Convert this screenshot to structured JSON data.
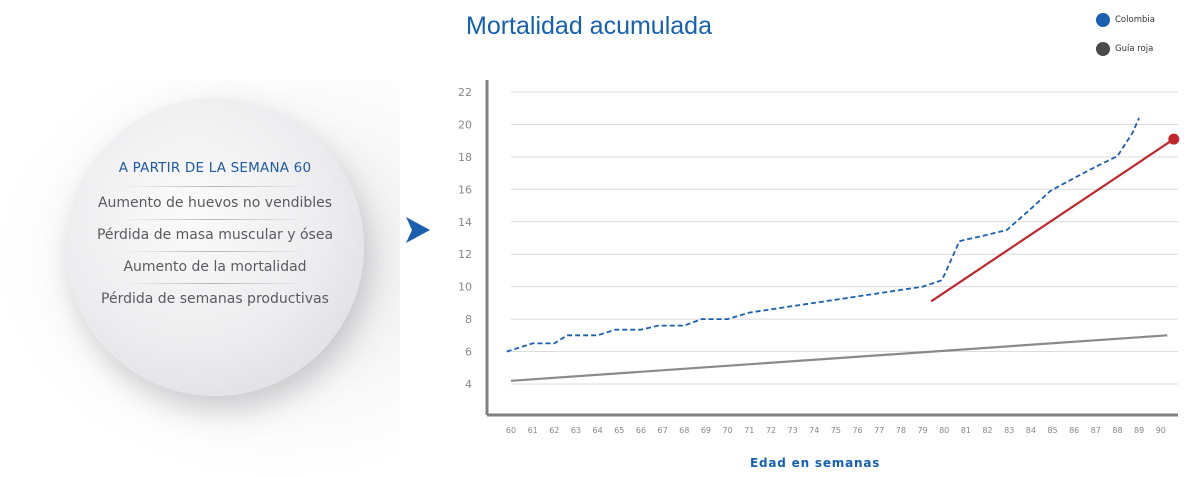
{
  "info_panel": {
    "heading": "A PARTIR DE LA SEMANA 60",
    "items": [
      "Aumento de huevos no vendibles",
      "Pérdida de masa muscular y ósea",
      "Aumento de la mortalidad",
      "Pérdida de semanas productivas"
    ],
    "arrow_icon": "arrow-right-icon"
  },
  "colors": {
    "colombia": "#1a5fb0",
    "guia_roja": "#4a4a4a",
    "trend": "#c1272d",
    "baseline": "#8a8a8a",
    "axis": "#808080"
  },
  "chart_data": {
    "type": "line",
    "title": "Mortalidad acumulada",
    "xlabel": "Edad en semanas",
    "ylabel": "",
    "x": [
      60,
      61,
      62,
      63,
      64,
      65,
      66,
      67,
      68,
      69,
      70,
      71,
      72,
      73,
      74,
      75,
      76,
      77,
      78,
      79,
      80,
      81,
      82,
      83,
      84,
      85,
      86,
      87,
      88,
      89,
      90
    ],
    "xlim": [
      59.2,
      90.6
    ],
    "ylim": [
      2.2,
      23
    ],
    "yticks": [
      4,
      6,
      8,
      10,
      12,
      14,
      16,
      18,
      20,
      22
    ],
    "grid": true,
    "legend_position": "top-right",
    "series": [
      {
        "name": "Colombia",
        "style": "dashed",
        "points": [
          [
            59.8,
            6.0
          ],
          [
            61,
            6.5
          ],
          [
            62,
            6.5
          ],
          [
            62.6,
            7.0
          ],
          [
            64,
            7.0
          ],
          [
            64.8,
            7.35
          ],
          [
            66,
            7.35
          ],
          [
            66.8,
            7.6
          ],
          [
            68,
            7.6
          ],
          [
            68.8,
            8.0
          ],
          [
            70,
            8.0
          ],
          [
            71,
            8.4
          ],
          [
            72,
            8.6
          ],
          [
            73,
            8.8
          ],
          [
            74,
            9.0
          ],
          [
            75,
            9.2
          ],
          [
            76,
            9.4
          ],
          [
            77,
            9.6
          ],
          [
            78,
            9.8
          ],
          [
            79,
            10.0
          ],
          [
            79.9,
            10.4
          ],
          [
            80.7,
            12.8
          ],
          [
            81,
            12.9
          ],
          [
            82,
            13.2
          ],
          [
            82.9,
            13.5
          ],
          [
            84,
            14.8
          ],
          [
            84.9,
            15.9
          ],
          [
            86,
            16.7
          ],
          [
            87,
            17.4
          ],
          [
            88,
            18.05
          ],
          [
            88.7,
            19.5
          ],
          [
            89.0,
            20.4
          ]
        ]
      },
      {
        "name": "Guía roja",
        "style": "solid",
        "points": [
          [
            60,
            4.2
          ],
          [
            90.3,
            7.0
          ]
        ]
      },
      {
        "name": "",
        "style": "solid",
        "points": [
          [
            79.4,
            9.1
          ],
          [
            90.6,
            19.1
          ]
        ],
        "end_marker": true
      }
    ]
  }
}
